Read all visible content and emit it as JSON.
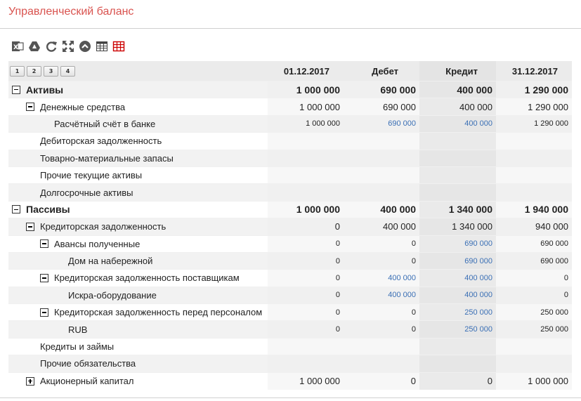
{
  "page": {
    "title": "Управленческий баланс"
  },
  "toolbar": {
    "icons": [
      "excel-export-icon",
      "google-drive-icon",
      "refresh-icon",
      "fullscreen-icon",
      "collapse-up-icon",
      "table-icon",
      "table-grid-icon"
    ]
  },
  "levels": [
    "1",
    "2",
    "3",
    "4"
  ],
  "columns": [
    "01.12.2017",
    "Дебет",
    "Кредит",
    "31.12.2017"
  ],
  "rows": [
    {
      "label": "Активы",
      "indent": 0,
      "toggle": "minus",
      "style": "bold",
      "values": [
        "1 000 000",
        "690 000",
        "400 000",
        "1 290 000"
      ],
      "links": [
        false,
        false,
        false,
        false
      ]
    },
    {
      "label": "Денежные средства",
      "indent": 1,
      "toggle": "minus",
      "style": "medium",
      "values": [
        "1 000 000",
        "690 000",
        "400 000",
        "1 290 000"
      ],
      "links": [
        false,
        false,
        false,
        false
      ]
    },
    {
      "label": "Расчётный счёт в банке",
      "indent": 2,
      "toggle": "",
      "style": "small",
      "values": [
        "1 000 000",
        "690 000",
        "400 000",
        "1 290 000"
      ],
      "links": [
        false,
        true,
        true,
        false
      ]
    },
    {
      "label": "Дебиторская задолженность",
      "indent": 1,
      "toggle": "",
      "style": "medium",
      "values": [
        "",
        "",
        "",
        ""
      ],
      "links": [
        false,
        false,
        false,
        false
      ]
    },
    {
      "label": "Товарно-материальные запасы",
      "indent": 1,
      "toggle": "",
      "style": "medium",
      "values": [
        "",
        "",
        "",
        ""
      ],
      "links": [
        false,
        false,
        false,
        false
      ]
    },
    {
      "label": "Прочие текущие активы",
      "indent": 1,
      "toggle": "",
      "style": "medium",
      "values": [
        "",
        "",
        "",
        ""
      ],
      "links": [
        false,
        false,
        false,
        false
      ]
    },
    {
      "label": "Долгосрочные активы",
      "indent": 1,
      "toggle": "",
      "style": "medium",
      "values": [
        "",
        "",
        "",
        ""
      ],
      "links": [
        false,
        false,
        false,
        false
      ]
    },
    {
      "label": "Пассивы",
      "indent": 0,
      "toggle": "minus",
      "style": "bold",
      "values": [
        "1 000 000",
        "400 000",
        "1 340 000",
        "1 940 000"
      ],
      "links": [
        false,
        false,
        false,
        false
      ]
    },
    {
      "label": "Кредиторская задолженность",
      "indent": 1,
      "toggle": "minus",
      "style": "medium",
      "values": [
        "0",
        "400 000",
        "1 340 000",
        "940 000"
      ],
      "links": [
        false,
        false,
        false,
        false
      ]
    },
    {
      "label": "Авансы полученные",
      "indent": 2,
      "toggle": "minus",
      "style": "small",
      "values": [
        "0",
        "0",
        "690 000",
        "690 000"
      ],
      "links": [
        false,
        false,
        true,
        false
      ]
    },
    {
      "label": "Дом на набережной",
      "indent": 3,
      "toggle": "",
      "style": "small",
      "values": [
        "0",
        "0",
        "690 000",
        "690 000"
      ],
      "links": [
        false,
        false,
        true,
        false
      ]
    },
    {
      "label": "Кредиторская задолженность поставщикам",
      "indent": 2,
      "toggle": "minus",
      "style": "small",
      "values": [
        "0",
        "400 000",
        "400 000",
        "0"
      ],
      "links": [
        false,
        true,
        true,
        false
      ]
    },
    {
      "label": "Искра-оборудование",
      "indent": 3,
      "toggle": "",
      "style": "small",
      "values": [
        "0",
        "400 000",
        "400 000",
        "0"
      ],
      "links": [
        false,
        true,
        true,
        false
      ]
    },
    {
      "label": "Кредиторская задолженность перед персоналом",
      "indent": 2,
      "toggle": "minus",
      "style": "small",
      "values": [
        "0",
        "0",
        "250 000",
        "250 000"
      ],
      "links": [
        false,
        false,
        true,
        false
      ]
    },
    {
      "label": "RUB",
      "indent": 3,
      "toggle": "",
      "style": "small",
      "values": [
        "0",
        "0",
        "250 000",
        "250 000"
      ],
      "links": [
        false,
        false,
        true,
        false
      ]
    },
    {
      "label": "Кредиты и займы",
      "indent": 1,
      "toggle": "",
      "style": "medium",
      "values": [
        "",
        "",
        "",
        ""
      ],
      "links": [
        false,
        false,
        false,
        false
      ]
    },
    {
      "label": "Прочие обязательства",
      "indent": 1,
      "toggle": "",
      "style": "medium",
      "values": [
        "",
        "",
        "",
        ""
      ],
      "links": [
        false,
        false,
        false,
        false
      ]
    },
    {
      "label": "Акционерный капитал",
      "indent": 1,
      "toggle": "plus",
      "style": "medium",
      "values": [
        "1 000 000",
        "0",
        "0",
        "1 000 000"
      ],
      "links": [
        false,
        false,
        false,
        false
      ]
    }
  ]
}
